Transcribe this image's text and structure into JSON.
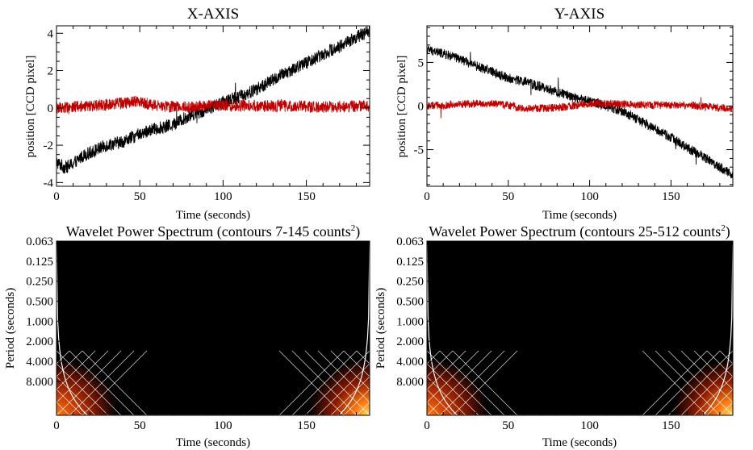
{
  "colors": {
    "black_series": "#000000",
    "red_series": "#c00000",
    "power_low": "#000000",
    "power_mid": "#8b1a00",
    "power_high": "#ff7a10",
    "power_peak": "#ffe060",
    "coi": "#ffffff"
  },
  "chart_data": [
    {
      "type": "line",
      "title": "X-AXIS",
      "xlabel": "Time (seconds)",
      "ylabel": "position [CCD pixel]",
      "xlim": [
        0,
        188
      ],
      "ylim": [
        -4.2,
        4.4
      ],
      "xticks": [
        0,
        50,
        100,
        150
      ],
      "yticks": [
        -4,
        -2,
        0,
        2,
        4
      ],
      "xminor": 10,
      "yminor": 0.5,
      "series": [
        {
          "color": "black",
          "noise": 0.35,
          "x": [
            0,
            5,
            10,
            15,
            20,
            30,
            40,
            50,
            60,
            70,
            80,
            90,
            100,
            110,
            120,
            130,
            140,
            150,
            160,
            170,
            180,
            188
          ],
          "y": [
            -2.9,
            -3.2,
            -3.0,
            -2.6,
            -2.4,
            -2.0,
            -1.8,
            -1.4,
            -1.1,
            -0.9,
            -0.4,
            -0.1,
            0.3,
            0.6,
            1.0,
            1.5,
            2.0,
            2.4,
            2.9,
            3.3,
            3.8,
            4.1
          ]
        },
        {
          "color": "red",
          "noise": 0.32,
          "x": [
            0,
            20,
            40,
            50,
            60,
            80,
            100,
            120,
            140,
            160,
            188
          ],
          "y": [
            0.0,
            0.1,
            0.25,
            0.35,
            0.1,
            0.05,
            0.15,
            0.1,
            0.1,
            0.05,
            0.1
          ]
        }
      ]
    },
    {
      "type": "line",
      "title": "Y-AXIS",
      "xlabel": "Time (seconds)",
      "ylabel": "",
      "xlim": [
        0,
        188
      ],
      "ylim": [
        -9.2,
        9.2
      ],
      "xticks": [
        0,
        50,
        100,
        150
      ],
      "yticks": [
        -5,
        0,
        5
      ],
      "xminor": 10,
      "yminor": 1,
      "series": [
        {
          "color": "black",
          "noise": 0.55,
          "x": [
            0,
            10,
            20,
            30,
            40,
            50,
            60,
            70,
            80,
            90,
            100,
            110,
            120,
            130,
            140,
            150,
            160,
            170,
            180,
            188
          ],
          "y": [
            6.5,
            6.0,
            5.4,
            4.6,
            4.0,
            3.2,
            2.8,
            2.2,
            1.6,
            1.0,
            0.6,
            0.0,
            -0.6,
            -1.6,
            -2.6,
            -3.6,
            -4.8,
            -5.8,
            -7.0,
            -7.9
          ]
        },
        {
          "color": "red",
          "noise": 0.45,
          "x": [
            0,
            20,
            40,
            50,
            60,
            80,
            100,
            120,
            140,
            160,
            188
          ],
          "y": [
            0.0,
            0.2,
            0.3,
            0.1,
            -0.3,
            -0.2,
            0.3,
            0.2,
            0.1,
            0.1,
            -0.3
          ]
        }
      ]
    },
    {
      "type": "heatmap",
      "title_main": "Wavelet Power Spectrum (contours 7-145 counts",
      "title_sup": "2",
      "title_end": ")",
      "xlabel": "Time (seconds)",
      "ylabel": "Period (seconds)",
      "xlim": [
        0,
        188
      ],
      "xticks": [
        0,
        50,
        100,
        150
      ],
      "ytick_labels": [
        "0.063",
        "0.125",
        "0.250",
        "0.500",
        "1.000",
        "2.000",
        "4.000",
        "8.000"
      ],
      "ylim_log2": [
        -4,
        4.7
      ],
      "coi_factor": 1.4
    },
    {
      "type": "heatmap",
      "title_main": "Wavelet Power Spectrum (contours 25-512 counts",
      "title_sup": "2",
      "title_end": ")",
      "xlabel": "Time (seconds)",
      "ylabel": "",
      "xlim": [
        0,
        188
      ],
      "xticks": [
        0,
        50,
        100,
        150
      ],
      "ytick_labels": [
        "0.063",
        "0.125",
        "0.250",
        "0.500",
        "1.000",
        "2.000",
        "4.000",
        "8.000"
      ],
      "ylim_log2": [
        -4,
        4.7
      ],
      "coi_factor": 1.4
    }
  ]
}
